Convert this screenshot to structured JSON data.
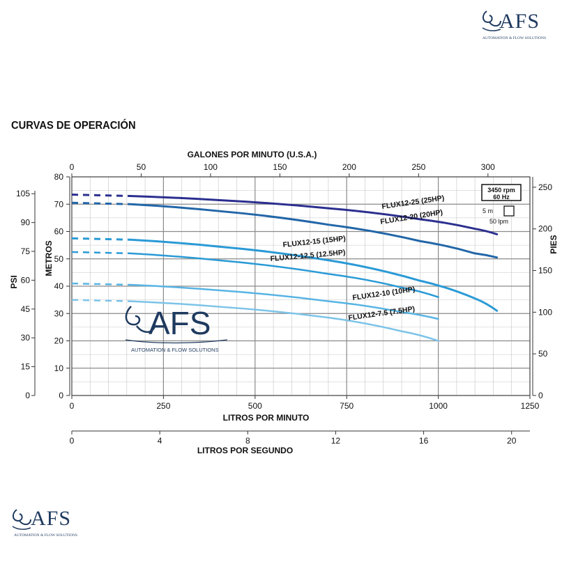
{
  "logo": {
    "mark": "AFS",
    "tagline": "AUTOMATION & FLOW SOLUTIONS"
  },
  "watermark": {
    "mark": "AFS",
    "tagline": "AUTOMATION & FLOW SOLUTIONS"
  },
  "page_title": "CURVAS DE OPERACIÓN",
  "colors": {
    "flux25": "#2b2f8f",
    "flux20": "#2266a8",
    "flux15": "#2a9ad6",
    "flux125": "#2a9ad6",
    "flux10": "#58b4e4",
    "flux75": "#7cc3e8",
    "grid": "#9a9a9a"
  },
  "chart_data": {
    "type": "line",
    "title": "",
    "xlabel": "LITROS POR MINUTO",
    "ylabel": "METROS",
    "xlim": [
      0,
      1250
    ],
    "ylim": [
      0,
      80
    ],
    "x_ticks": [
      0,
      250,
      500,
      750,
      1000,
      1250
    ],
    "y_ticks": [
      0,
      10,
      20,
      30,
      40,
      50,
      60,
      70,
      80
    ],
    "top_axis": {
      "label": "GALONES POR MINUTO (U.S.A.)",
      "ticks": [
        0,
        50,
        100,
        150,
        200,
        250,
        300
      ]
    },
    "right_axis": {
      "label": "PIES",
      "ticks": [
        0,
        50,
        100,
        150,
        200,
        250
      ]
    },
    "left_axis": {
      "label": "PSI",
      "ticks": [
        0,
        15,
        30,
        45,
        60,
        75,
        90,
        105
      ]
    },
    "bottom_axis2": {
      "label": "LITROS POR SEGUNDO",
      "ticks": [
        0,
        4,
        8,
        12,
        16,
        20
      ]
    },
    "note": {
      "speed": "3450 rpm",
      "freq": "60 Hz",
      "scale_y": "5 m",
      "scale_x": "50 lpm"
    },
    "grid": true,
    "series": [
      {
        "name": "FLUX12-25 (25HP)",
        "dashed_until": 160,
        "x": [
          0,
          160,
          400,
          700,
          950,
          1100,
          1160
        ],
        "y": [
          73.5,
          73,
          71.5,
          68.5,
          64.5,
          61,
          59
        ]
      },
      {
        "name": "FLUX12-20 (20HP)",
        "dashed_until": 160,
        "x": [
          0,
          160,
          400,
          700,
          950,
          1100,
          1160
        ],
        "y": [
          70.5,
          70,
          67.5,
          62.5,
          56.5,
          52,
          50.5
        ]
      },
      {
        "name": "FLUX12-15 (15HP)",
        "dashed_until": 160,
        "x": [
          0,
          160,
          400,
          700,
          950,
          1100,
          1160
        ],
        "y": [
          57.5,
          57,
          54.5,
          49.5,
          42,
          35.5,
          31
        ]
      },
      {
        "name": "FLUX12-12.5 (12.5HP)",
        "dashed_until": 160,
        "x": [
          0,
          160,
          400,
          700,
          900,
          1000
        ],
        "y": [
          52.5,
          52,
          49.5,
          44.5,
          39.5,
          36
        ]
      },
      {
        "name": "FLUX12-10 (10HP)",
        "dashed_until": 160,
        "x": [
          0,
          160,
          400,
          700,
          900,
          1000
        ],
        "y": [
          41,
          40.5,
          38.5,
          34.5,
          30.5,
          28
        ]
      },
      {
        "name": "FLUX12-7.5 (7.5HP)",
        "dashed_until": 160,
        "x": [
          0,
          160,
          400,
          700,
          900,
          1000
        ],
        "y": [
          35,
          34.5,
          32.5,
          28.5,
          23.5,
          20
        ]
      }
    ]
  }
}
